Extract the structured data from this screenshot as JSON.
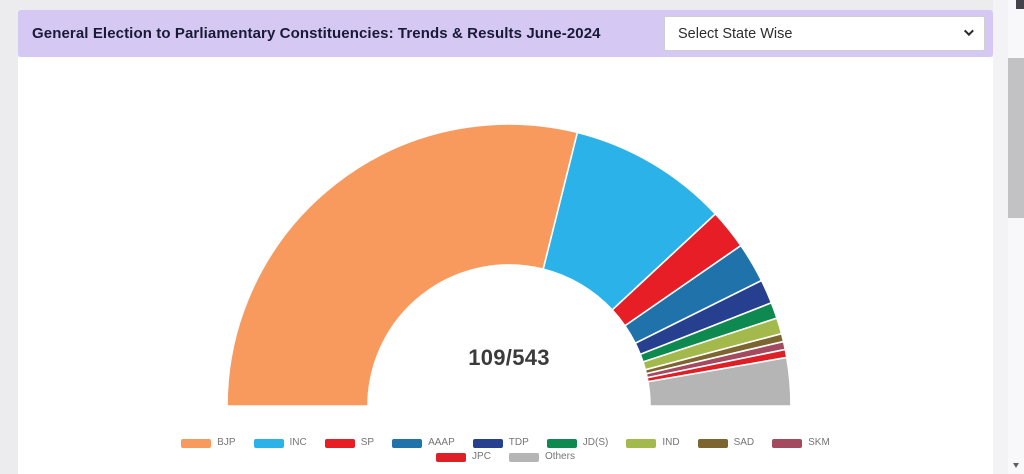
{
  "header": {
    "title": "General Election to Parliamentary Constituencies: Trends & Results June-2024",
    "background": "#d5c8f2",
    "select": {
      "value": "Select State Wise"
    }
  },
  "chart_data": {
    "type": "donut-gauge",
    "title": "General Election to Parliamentary Constituencies: Trends & Results June-2024",
    "center_label": "109/543",
    "declared_seats": 109,
    "total_seats": 543,
    "start_angle": 180,
    "end_angle": 0,
    "legend_position": "bottom",
    "legend_rows": [
      9,
      2
    ],
    "series": [
      {
        "name": "BJP",
        "value": 63,
        "color": "#F8995E"
      },
      {
        "name": "INC",
        "value": 20,
        "color": "#2BB2E9"
      },
      {
        "name": "SP",
        "value": 5,
        "color": "#E71E25"
      },
      {
        "name": "AAAP",
        "value": 5,
        "color": "#1F72AA"
      },
      {
        "name": "TDP",
        "value": 3,
        "color": "#263F8F"
      },
      {
        "name": "JD(S)",
        "value": 2,
        "color": "#0E8A50"
      },
      {
        "name": "IND",
        "value": 2,
        "color": "#A3B94B"
      },
      {
        "name": "SAD",
        "value": 1,
        "color": "#7D6530"
      },
      {
        "name": "SKM",
        "value": 1,
        "color": "#A34A60"
      },
      {
        "name": "JPC",
        "value": 1,
        "color": "#DF1F26"
      },
      {
        "name": "Others",
        "value": 6,
        "color": "#B5B5B5"
      }
    ]
  }
}
